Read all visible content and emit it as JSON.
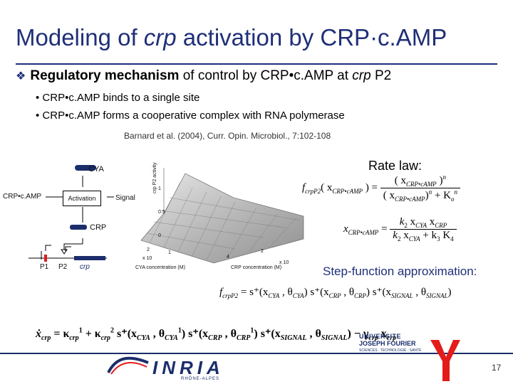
{
  "title": {
    "part1": "Modeling of ",
    "italic": "crp",
    "part2": " activation by CRP·c.AMP"
  },
  "bullet": {
    "mark": "❖",
    "bold": "Regulatory mechanism",
    "rest": " of  control by CRP•c.AMP at ",
    "italic": "crp",
    "end": " P2"
  },
  "subbullets": [
    "• CRP•c.AMP binds to a single site",
    "• CRP•c.AMP forms a cooperative complex with RNA polymerase"
  ],
  "reference": "Barnard et al. (2004), Curr. Opin. Microbiol., 7:102-108",
  "diagram": {
    "cya": "CYA",
    "crp_camp": "CRP•c.AMP",
    "activation": "Activation",
    "signal": "Signal",
    "crp": "CRP",
    "p1": "P1",
    "p2": "P2",
    "gene": "crp"
  },
  "plot": {
    "zlabel": "crp P2 activity",
    "xlabel": "CYA concentration (M)",
    "ylabel": "CRP concentration (M)",
    "xexp": "x 10",
    "yexp": "x 10",
    "ticks": [
      "1",
      "0.5",
      "0",
      "2",
      "1",
      "4",
      "2"
    ]
  },
  "rate_law": {
    "heading": "Rate law:",
    "f_lhs": "f",
    "f_sub": "crpP2",
    "f_arg": "( x",
    "f_arg_sub": "CRP•cAMP",
    "f_arg_close": " ) =",
    "f_num": "( x",
    "f_num_sub": "CRP•cAMP",
    "f_num_close": " )",
    "f_num_sup": "n",
    "f_den": "( x",
    "f_den_sub": "CRP•cAMP",
    "f_den_close": ")",
    "f_den_sup": "n",
    "f_den_tail": " + K",
    "f_den_tail_sub": "o",
    "f_den_tail_sup": "n",
    "x_lhs": "x",
    "x_lhs_sub": "CRP•cAMP",
    "x_eq": " =",
    "x_num": "k",
    "x_num_sub1": "2",
    "x_num_mid": " x",
    "x_num_sub2": "CYA",
    "x_num_mid2": " x",
    "x_num_sub3": "CRP",
    "x_den": "k",
    "x_den_sub1": "2",
    "x_den_mid": " x",
    "x_den_sub2": "CYA",
    "x_den_mid2": " + k",
    "x_den_sub3": "3",
    "x_den_tail": " K",
    "x_den_sub4": "4"
  },
  "step": {
    "heading": "Step-function approximation:",
    "eq1": "f",
    "eq1_sub": "crpP2",
    "eq1_rest": " = s⁺(x",
    "eq1_a": "CYA",
    "eq1_b": " , θ",
    "eq1_c": "CYA",
    "eq1_d": ") s⁺(x",
    "eq1_e": "CRP",
    "eq1_f": " , θ",
    "eq1_g": "CRP",
    "eq1_h": ") s⁺(x",
    "eq1_i": "SIGNAL",
    "eq1_j": " , θ",
    "eq1_k": "SIGNAL",
    "eq1_l": ")",
    "eq2": "ẋ",
    "eq2_sub": "crp",
    "eq2_rest": " = κ",
    "eq2_k1sub": "crp",
    "eq2_k1sup": "1",
    "eq2_plus": " + κ",
    "eq2_k2sub": "crp",
    "eq2_k2sup": "2",
    "eq2_s1": " s⁺(x",
    "eq2_s1sub": "CYA",
    "eq2_s1b": " , θ",
    "eq2_s1c": "CYA",
    "eq2_s1sup": "1",
    "eq2_s2": ") s⁺(x",
    "eq2_s2sub": "CRP",
    "eq2_s2b": " , θ",
    "eq2_s2c": "CRP",
    "eq2_s2sup": "1",
    "eq2_s3": ") s⁺(x",
    "eq2_s3sub": "SIGNAL",
    "eq2_s3b": " , θ",
    "eq2_s3c": "SIGNAL",
    "eq2_end": ") − γ",
    "eq2_gsub": "crp",
    "eq2_x": " x",
    "eq2_xsub": "crp"
  },
  "logos": {
    "inria": "INRIA",
    "inria_sub": "RHÔNE-ALPES",
    "ujf1": "UNIVERSITE",
    "ujf2": "JOSEPH FOURIER",
    "ujf3": "SCIENCES · TECHNOLOGIE · SANTÉ"
  },
  "page_number": "17",
  "colors": {
    "title": "#1f2f78",
    "accent_red": "#e31b1b",
    "navy": "#1b2d6b"
  }
}
